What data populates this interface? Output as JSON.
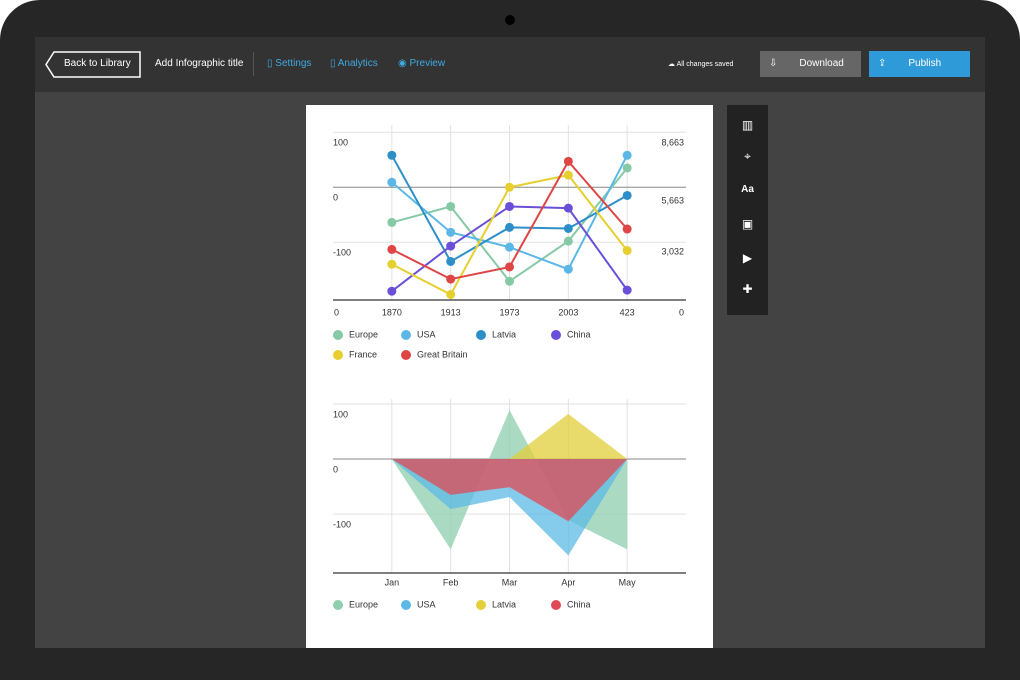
{
  "toolbar": {
    "back": "Back to Library",
    "title": "Add Infographic title",
    "settings": "Settings",
    "analytics": "Analytics",
    "preview": "Preview",
    "status": "All changes saved",
    "download": "Download",
    "publish": "Publish"
  },
  "chart_data": [
    {
      "type": "line",
      "categories": [
        "1870",
        "1913",
        "1973",
        "2003",
        "423"
      ],
      "axis_corner_labels": [
        "0",
        "0"
      ],
      "ylim": [
        -205,
        104
      ],
      "yticks": [
        100,
        0,
        -100
      ],
      "y2lim": [
        0,
        8766
      ],
      "y2ticks": [
        {
          "value": 8663,
          "label": "8,663"
        },
        {
          "value": 5663,
          "label": "5,663"
        },
        {
          "value": 3032,
          "label": "3,032"
        }
      ],
      "series": [
        {
          "name": "Europe",
          "color": "#86c9a6",
          "values": [
            -64,
            -35,
            -171,
            -98,
            35
          ]
        },
        {
          "name": "USA",
          "color": "#5bb8e6",
          "values": [
            9,
            -82,
            -109,
            -149,
            58
          ]
        },
        {
          "name": "Latvia",
          "color": "#2e8fc8",
          "values": [
            58,
            -135,
            -73,
            -75,
            -15
          ]
        },
        {
          "name": "China",
          "color": "#6a4fd8",
          "values": [
            -189,
            -107,
            -35,
            -38,
            -187
          ]
        },
        {
          "name": "France",
          "color": "#e6cf2e",
          "values": [
            -140,
            -195,
            0,
            22,
            -115
          ]
        },
        {
          "name": "Great Britain",
          "color": "#e04545",
          "values": [
            -113,
            -167,
            -145,
            47,
            -76
          ]
        }
      ]
    },
    {
      "type": "area",
      "categories": [
        "Jan",
        "Feb",
        "Mar",
        "Apr",
        "May"
      ],
      "ylim": [
        -207,
        100
      ],
      "yticks": [
        100,
        0,
        -100
      ],
      "series": [
        {
          "name": "Europe",
          "color": "#8ecfae",
          "values": [
            0,
            -164,
            89,
            -111,
            -164
          ]
        },
        {
          "name": "USA",
          "color": "#5cb9e6",
          "values": [
            0,
            -91,
            -69,
            -175,
            0
          ]
        },
        {
          "name": "Latvia",
          "color": "#e2cf3a",
          "values": [
            0,
            0,
            0,
            82,
            0
          ]
        },
        {
          "name": "China",
          "color": "#e04a55",
          "values": [
            0,
            -65,
            -51,
            -113,
            0
          ]
        }
      ]
    }
  ]
}
